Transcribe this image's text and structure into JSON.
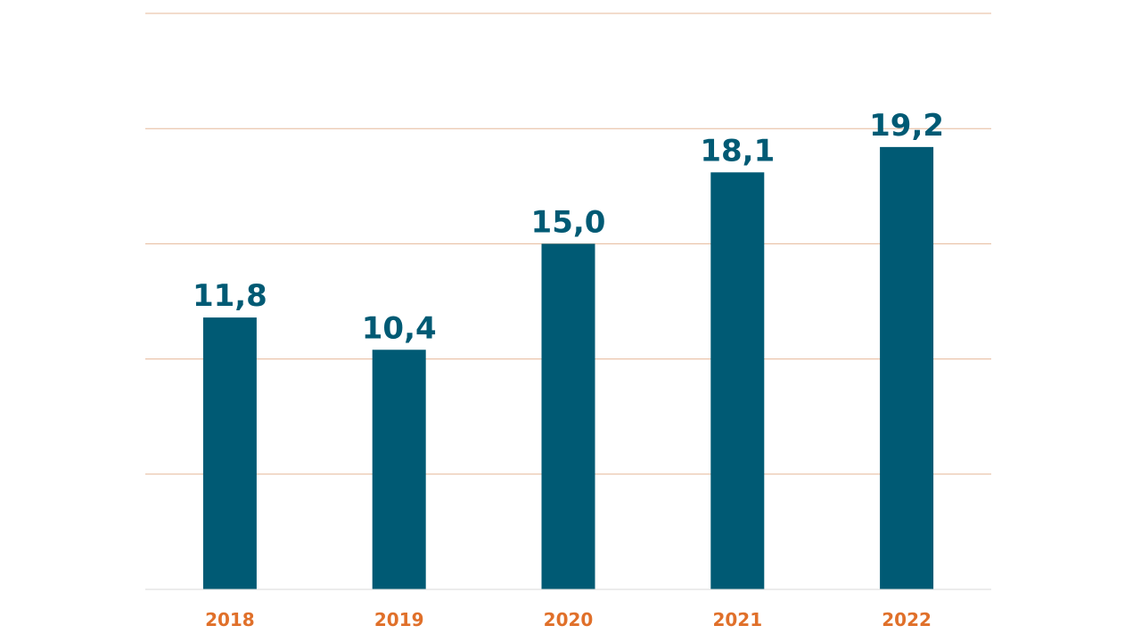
{
  "chart_data": {
    "type": "bar",
    "categories": [
      "2018",
      "2019",
      "2020",
      "2021",
      "2022"
    ],
    "values": [
      11.8,
      10.4,
      15.0,
      18.1,
      19.2
    ],
    "data_labels": [
      "11,8",
      "10,4",
      "15,0",
      "18,1",
      "19,2"
    ],
    "ylim": [
      0,
      25
    ],
    "y_gridline_step": 5,
    "y_tick_labels_shown": false,
    "grid": true,
    "legend": "none"
  },
  "colors": {
    "bar": "#005a74",
    "data_label": "#005a74",
    "tick_label": "#e0702a",
    "gridline": "#e6b89a",
    "axis": "#d9d9d9"
  }
}
